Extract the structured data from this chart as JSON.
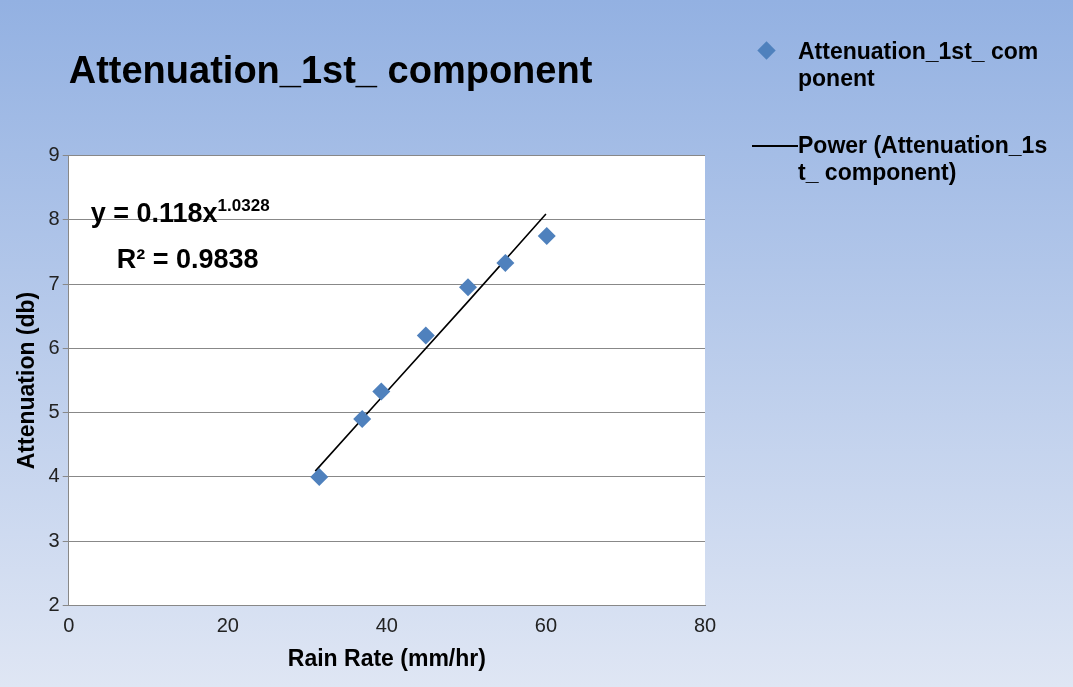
{
  "chart_data": {
    "type": "scatter",
    "title": "Attenuation_1st_ component",
    "xlabel": "Rain Rate (mm/hr)",
    "ylabel": "Attenuation (db)",
    "x": [
      31.5,
      36.9,
      39.3,
      44.9,
      50.2,
      54.9,
      60.1
    ],
    "series": [
      {
        "name": "Attenuation_1st_ component",
        "color": "#4f81bd",
        "values": [
          4.0,
          4.9,
          5.33,
          6.2,
          6.95,
          7.33,
          7.75
        ],
        "marker": "diamond"
      },
      {
        "name": "Power (Attenuation_1st_ component)",
        "type": "line",
        "color": "#000000",
        "x": [
          31,
          40,
          50,
          60
        ],
        "values": [
          4.09,
          5.33,
          6.7,
          8.09
        ],
        "marker": "none"
      }
    ],
    "xlim": [
      0,
      80
    ],
    "xticks": [
      0,
      20,
      40,
      60,
      80
    ],
    "ylim": [
      2,
      9
    ],
    "yticks": [
      2,
      3,
      4,
      5,
      6,
      7,
      8,
      9
    ],
    "grid": "y",
    "legend": "top right",
    "annotations": [
      "y = 0.118x$^{1.0328}$",
      "R² = 0.9838"
    ]
  }
}
